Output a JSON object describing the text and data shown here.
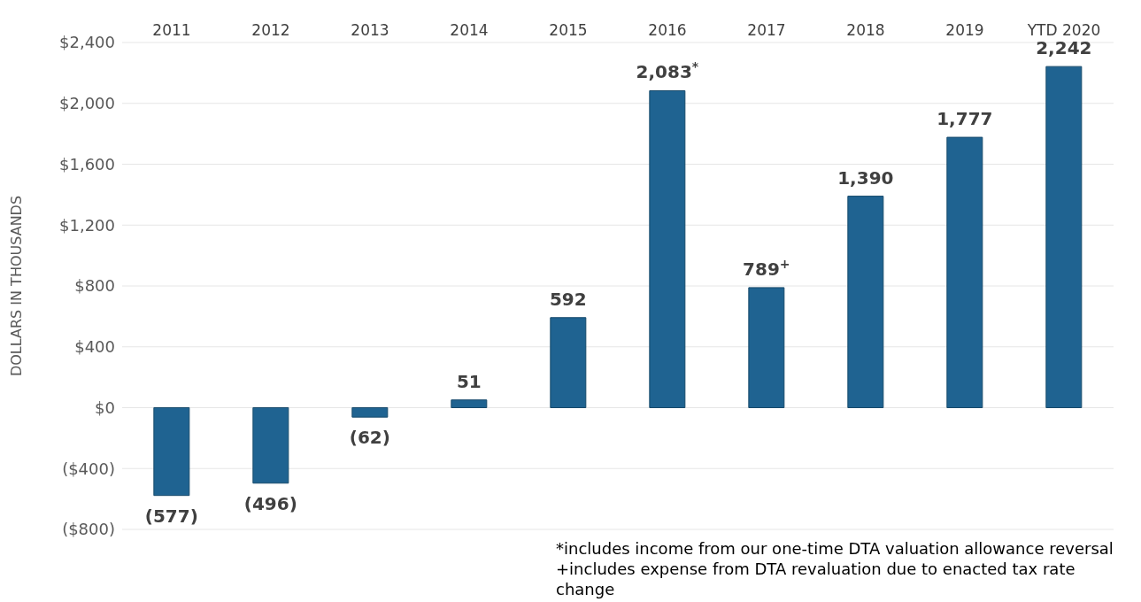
{
  "chart_data": {
    "type": "bar",
    "ylabel": "DOLLARS IN THOUSANDS",
    "categories": [
      "2011",
      "2012",
      "2013",
      "2014",
      "2015",
      "2016",
      "2017",
      "2018",
      "2019",
      "YTD 2020"
    ],
    "values": [
      -577,
      -496,
      -62,
      51,
      592,
      2083,
      789,
      1390,
      1777,
      2242
    ],
    "value_labels": [
      "(577)",
      "(496)",
      "(62)",
      "51",
      "592",
      "2,083$^{*}$",
      "789$^{+}$",
      "1,390",
      "1,777",
      "2,242"
    ],
    "color": "#1f6391",
    "ylim": [
      -800,
      2400
    ],
    "yticks": [
      {
        "value": -800,
        "label": "($800)"
      },
      {
        "value": -400,
        "label": "($400)"
      },
      {
        "value": 0,
        "label": "$0"
      },
      {
        "value": 400,
        "label": "$400"
      },
      {
        "value": 800,
        "label": "$800"
      },
      {
        "value": 1200,
        "label": "$1,200"
      },
      {
        "value": 1600,
        "label": "$1,600"
      },
      {
        "value": 2000,
        "label": "$2,000"
      },
      {
        "value": 2400,
        "label": "$2,400"
      }
    ],
    "grid": "y",
    "annotations": [
      "*includes income from our one-time DTA valuation allowance reversal",
      "+includes expense from DTA revaluation due to enacted tax rate change"
    ]
  }
}
